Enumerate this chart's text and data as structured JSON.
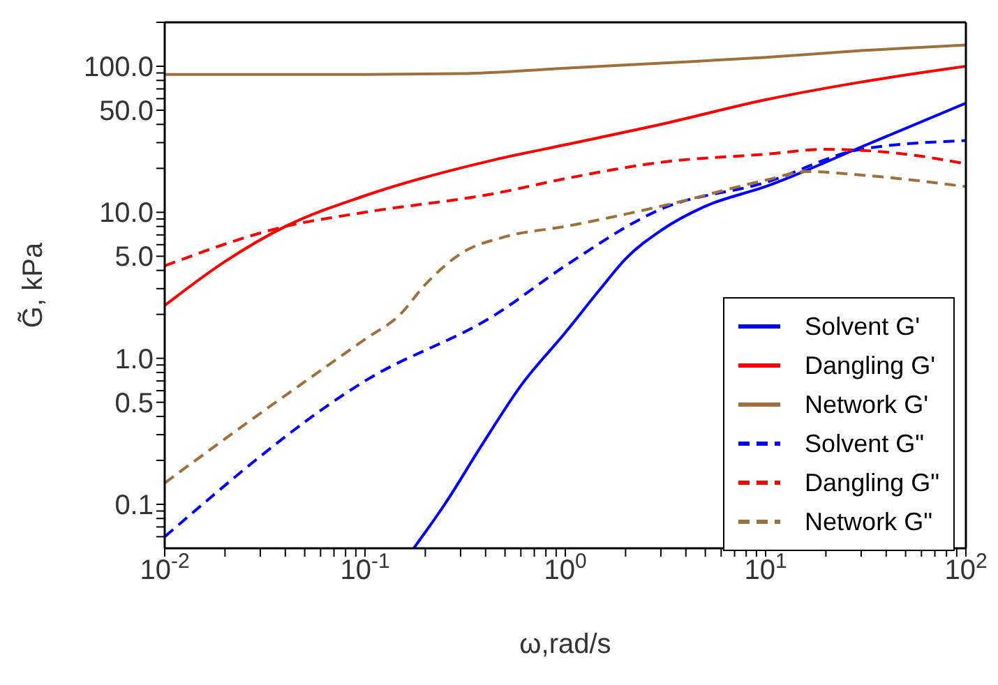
{
  "chart_data": {
    "type": "line",
    "xlabel": "ω,rad/s",
    "ylabel": "G̃, kPa",
    "log": "xy",
    "grid": false,
    "legend": "bottom right",
    "marker": "none",
    "xlim": [
      0.01,
      100
    ],
    "ylim": [
      0.05,
      200
    ],
    "xticks": [
      {
        "value": 0.01,
        "label": "10$^{-2}$"
      },
      {
        "value": 0.02,
        "label": null
      },
      {
        "value": 0.03,
        "label": null
      },
      {
        "value": 0.04,
        "label": null
      },
      {
        "value": 0.05,
        "label": null
      },
      {
        "value": 0.06,
        "label": null
      },
      {
        "value": 0.07,
        "label": null
      },
      {
        "value": 0.08,
        "label": null
      },
      {
        "value": 0.09,
        "label": null
      },
      {
        "value": 0.1,
        "label": "10$^{-1}$"
      },
      {
        "value": 0.2,
        "label": null
      },
      {
        "value": 0.3,
        "label": null
      },
      {
        "value": 0.4,
        "label": null
      },
      {
        "value": 0.5,
        "label": null
      },
      {
        "value": 0.6,
        "label": null
      },
      {
        "value": 0.7,
        "label": null
      },
      {
        "value": 0.8,
        "label": null
      },
      {
        "value": 0.9,
        "label": null
      },
      {
        "value": 1,
        "label": "10$^{0}$"
      },
      {
        "value": 2,
        "label": null
      },
      {
        "value": 3,
        "label": null
      },
      {
        "value": 4,
        "label": null
      },
      {
        "value": 5,
        "label": null
      },
      {
        "value": 6,
        "label": null
      },
      {
        "value": 7,
        "label": null
      },
      {
        "value": 8,
        "label": null
      },
      {
        "value": 9,
        "label": null
      },
      {
        "value": 10,
        "label": "10$^{1}$"
      },
      {
        "value": 20,
        "label": null
      },
      {
        "value": 30,
        "label": null
      },
      {
        "value": 40,
        "label": null
      },
      {
        "value": 50,
        "label": null
      },
      {
        "value": 60,
        "label": null
      },
      {
        "value": 70,
        "label": null
      },
      {
        "value": 80,
        "label": null
      },
      {
        "value": 90,
        "label": null
      },
      {
        "value": 100,
        "label": "10$^{2}$"
      }
    ],
    "yticks": [
      {
        "value": 0.06,
        "label": null
      },
      {
        "value": 0.07,
        "label": null
      },
      {
        "value": 0.08,
        "label": null
      },
      {
        "value": 0.09,
        "label": null
      },
      {
        "value": 0.1,
        "label": "0.1"
      },
      {
        "value": 0.2,
        "label": null
      },
      {
        "value": 0.3,
        "label": null
      },
      {
        "value": 0.4,
        "label": null
      },
      {
        "value": 0.5,
        "label": "0.5"
      },
      {
        "value": 0.6,
        "label": null
      },
      {
        "value": 0.7,
        "label": null
      },
      {
        "value": 0.8,
        "label": null
      },
      {
        "value": 0.9,
        "label": null
      },
      {
        "value": 1,
        "label": "1.0"
      },
      {
        "value": 2,
        "label": null
      },
      {
        "value": 3,
        "label": null
      },
      {
        "value": 4,
        "label": null
      },
      {
        "value": 5,
        "label": "5.0"
      },
      {
        "value": 6,
        "label": null
      },
      {
        "value": 7,
        "label": null
      },
      {
        "value": 8,
        "label": null
      },
      {
        "value": 9,
        "label": null
      },
      {
        "value": 10,
        "label": "10.0"
      },
      {
        "value": 20,
        "label": null
      },
      {
        "value": 30,
        "label": null
      },
      {
        "value": 40,
        "label": null
      },
      {
        "value": 50,
        "label": "50.0"
      },
      {
        "value": 60,
        "label": null
      },
      {
        "value": 70,
        "label": null
      },
      {
        "value": 80,
        "label": null
      },
      {
        "value": 90,
        "label": null
      },
      {
        "value": 100,
        "label": "100.0"
      },
      {
        "value": 200,
        "label": null
      }
    ],
    "series": [
      {
        "name": "Solvent G'",
        "color": "#0000ff",
        "line_style": "solid",
        "x": [
          0.175,
          0.25,
          0.38,
          0.6,
          1,
          1.5,
          2,
          3,
          5,
          10,
          30,
          100
        ],
        "values": [
          0.05,
          0.1,
          0.25,
          0.65,
          1.5,
          3,
          4.8,
          7.5,
          11,
          15,
          28,
          56
        ]
      },
      {
        "name": "Dangling G'",
        "color": "#ff0000",
        "line_style": "solid",
        "x": [
          0.01,
          0.02,
          0.04,
          0.1,
          0.45,
          1,
          3,
          10,
          30,
          100
        ],
        "values": [
          2.3,
          4.6,
          8,
          13,
          23,
          29,
          40,
          59,
          78,
          100
        ]
      },
      {
        "name": "Network G'",
        "color": "#a0703c",
        "line_style": "solid",
        "x": [
          0.01,
          0.1,
          0.3,
          1,
          3,
          10,
          30,
          100
        ],
        "values": [
          88,
          88,
          89,
          97,
          105,
          115,
          128,
          140
        ]
      },
      {
        "name": "Solvent G\"",
        "color": "#0000ff",
        "line_style": "dashed",
        "x": [
          0.01,
          0.1,
          0.45,
          1,
          3,
          10,
          30,
          100
        ],
        "values": [
          0.06,
          0.7,
          2,
          4.3,
          10.5,
          16,
          27,
          31
        ]
      },
      {
        "name": "Dangling G\"",
        "color": "#ff0000",
        "line_style": "dashed",
        "x": [
          0.01,
          0.04,
          0.1,
          0.45,
          1,
          3,
          10,
          20,
          50,
          100
        ],
        "values": [
          4.3,
          8,
          10,
          13.5,
          17,
          22,
          25,
          27,
          25,
          21.5
        ]
      },
      {
        "name": "Network G\"",
        "color": "#a0703c",
        "line_style": "dashed",
        "x": [
          0.01,
          0.03,
          0.1,
          0.15,
          0.2,
          0.3,
          0.5,
          1,
          3,
          10,
          16,
          30,
          100
        ],
        "values": [
          0.14,
          0.42,
          1.35,
          2,
          3.2,
          5.2,
          6.8,
          8,
          11,
          16.6,
          19,
          18,
          15
        ]
      }
    ]
  }
}
